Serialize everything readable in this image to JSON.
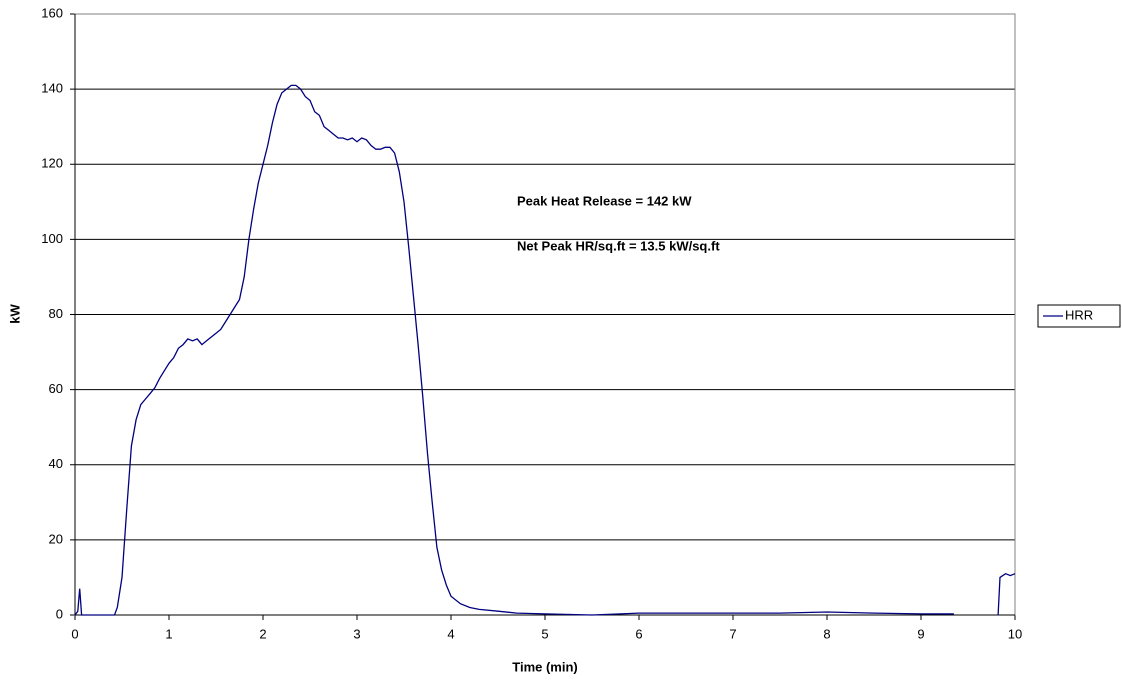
{
  "chart_data": {
    "type": "line",
    "xlabel": "Time (min)",
    "ylabel": "kW",
    "annotations": [
      "Peak Heat Release = 142 kW",
      "Net Peak HR/sq.ft = 13.5 kW/sq.ft"
    ],
    "x": [
      0,
      0.03,
      0.05,
      0.07,
      0.42,
      0.45,
      0.5,
      0.55,
      0.6,
      0.65,
      0.7,
      0.75,
      0.8,
      0.85,
      0.9,
      0.95,
      1.0,
      1.05,
      1.1,
      1.15,
      1.2,
      1.25,
      1.3,
      1.35,
      1.4,
      1.45,
      1.5,
      1.55,
      1.6,
      1.65,
      1.7,
      1.75,
      1.8,
      1.85,
      1.9,
      1.95,
      2.0,
      2.05,
      2.1,
      2.15,
      2.2,
      2.25,
      2.3,
      2.35,
      2.4,
      2.45,
      2.5,
      2.55,
      2.6,
      2.65,
      2.7,
      2.75,
      2.8,
      2.85,
      2.9,
      2.95,
      3.0,
      3.05,
      3.1,
      3.15,
      3.2,
      3.25,
      3.3,
      3.35,
      3.4,
      3.45,
      3.5,
      3.55,
      3.6,
      3.65,
      3.7,
      3.75,
      3.8,
      3.85,
      3.9,
      3.95,
      4.0,
      4.1,
      4.2,
      4.3,
      4.5,
      4.7,
      5.0,
      5.5,
      6.0,
      6.5,
      7.0,
      7.5,
      8.0,
      8.5,
      9.0,
      9.35,
      9.4,
      9.82,
      9.84,
      9.9,
      9.95,
      10.0
    ],
    "series": [
      {
        "name": "HRR",
        "color": "#000080",
        "values": [
          0,
          1,
          7,
          0,
          0,
          2,
          10,
          28,
          45,
          52,
          56,
          57.5,
          59,
          60.5,
          63,
          65,
          67,
          68.5,
          71,
          72,
          73.5,
          73,
          73.5,
          72,
          73,
          74,
          75,
          76,
          78,
          80,
          82,
          84,
          90,
          100,
          108,
          115,
          120,
          125,
          131,
          136,
          139,
          140,
          141,
          141,
          140,
          138,
          137,
          134,
          133,
          130,
          129,
          128,
          127,
          127,
          126.5,
          127,
          126,
          127,
          126.5,
          125,
          124,
          124,
          124.5,
          124.5,
          123,
          118,
          110,
          98,
          85,
          72,
          58,
          43,
          30,
          18,
          12,
          8,
          5,
          3,
          2,
          1.5,
          1,
          0.5,
          0.3,
          0,
          0.5,
          0.5,
          0.5,
          0.5,
          0.8,
          0.5,
          0.3,
          0.3,
          null,
          0,
          10,
          11,
          10.5,
          11
        ]
      }
    ],
    "xlim": [
      0,
      10
    ],
    "xticks": [
      0,
      1,
      2,
      3,
      4,
      5,
      6,
      7,
      8,
      9,
      10
    ],
    "ylim": [
      0,
      160
    ],
    "yticks": [
      0,
      20,
      40,
      60,
      80,
      100,
      120,
      140,
      160
    ],
    "grid": true,
    "legend": "right"
  }
}
